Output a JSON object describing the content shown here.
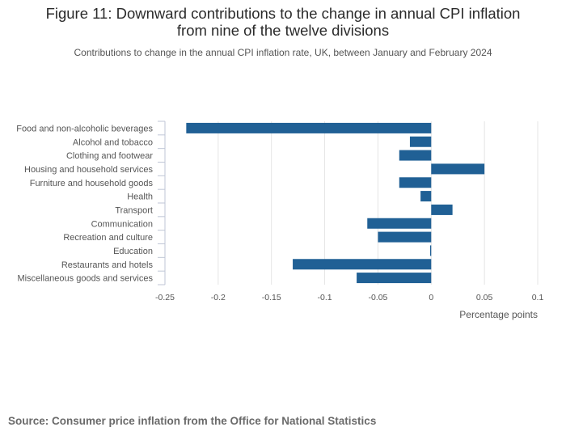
{
  "header": {
    "title_line1": "Figure 11: Downward contributions to the change in annual CPI inflation",
    "title_line2": "from nine of the twelve divisions",
    "subtitle": "Contributions to change in the annual CPI inflation rate, UK, between January and February 2024"
  },
  "footer": {
    "source": "Source: Consumer price inflation from the Office for National Statistics"
  },
  "colors": {
    "bar": "#206095",
    "grid": "#e5e5e5",
    "axis": "#bfc6d6",
    "text": "#555555"
  },
  "chart_data": {
    "type": "bar",
    "orientation": "horizontal",
    "title": "Figure 11: Downward contributions to the change in annual CPI inflation from nine of the twelve divisions",
    "xlabel": "Percentage points",
    "ylabel": "",
    "xlim": [
      -0.25,
      0.1
    ],
    "xticks": [
      -0.25,
      -0.2,
      -0.15,
      -0.1,
      -0.05,
      0,
      0.05,
      0.1
    ],
    "xtick_labels": [
      "-0.25",
      "-0.2",
      "-0.15",
      "-0.1",
      "-0.05",
      "0",
      "0.05",
      "0.1"
    ],
    "grid": true,
    "categories": [
      "Food and non-alcoholic beverages",
      "Alcohol and tobacco",
      "Clothing and footwear",
      "Housing and household services",
      "Furniture and household goods",
      "Health",
      "Transport",
      "Communication",
      "Recreation and culture",
      "Education",
      "Restaurants and hotels",
      "Miscellaneous goods and services"
    ],
    "values": [
      -0.23,
      -0.02,
      -0.03,
      0.05,
      -0.03,
      -0.01,
      0.02,
      -0.06,
      -0.05,
      -0.001,
      -0.13,
      -0.07
    ]
  }
}
